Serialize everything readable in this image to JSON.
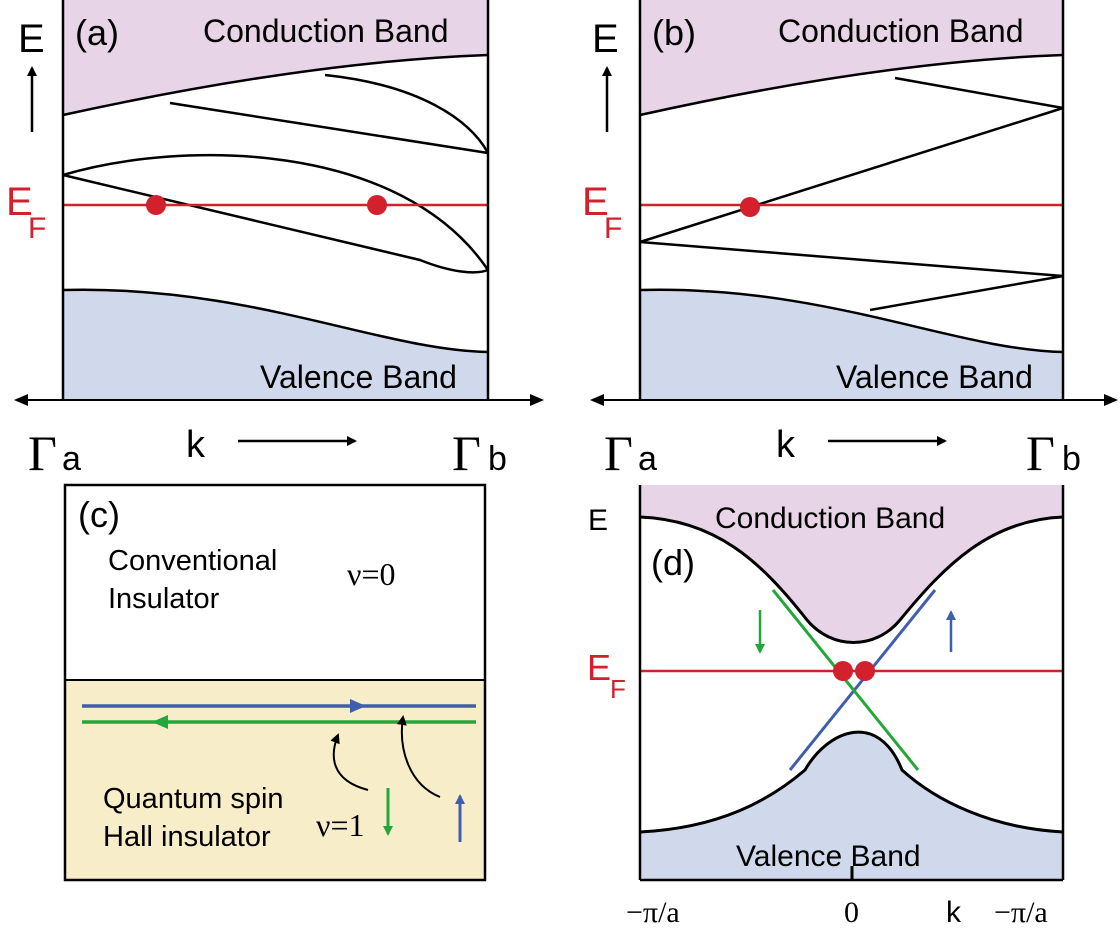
{
  "panel_a": {
    "tag": "(a)",
    "energy_axis": "E",
    "fermi_main": "E",
    "fermi_sub": "F",
    "conduction_band": "Conduction Band",
    "valence_band": "Valence Band",
    "gamma": "Γ",
    "gamma_a_sub": "a",
    "gamma_b_sub": "b",
    "k_label": "k"
  },
  "panel_b": {
    "tag": "(b)",
    "energy_axis": "E",
    "fermi_main": "E",
    "fermi_sub": "F",
    "conduction_band": "Conduction Band",
    "valence_band": "Valence Band",
    "gamma": "Γ",
    "gamma_a_sub": "a",
    "gamma_b_sub": "b",
    "k_label": "k"
  },
  "panel_c": {
    "tag": "(c)",
    "top_line1": "Conventional",
    "top_line2": "Insulator",
    "top_nu": "ν=0",
    "bottom_line1": "Quantum spin",
    "bottom_line2": "Hall insulator",
    "bottom_nu": "ν=1"
  },
  "panel_d": {
    "tag": "(d)",
    "energy_axis": "E",
    "fermi_main": "E",
    "fermi_sub": "F",
    "conduction_band": "Conduction Band",
    "valence_band": "Valence Band",
    "tick_left": "−π/a",
    "tick_zero": "0",
    "tick_k": "k",
    "tick_right": "−π/a"
  },
  "colors": {
    "conduction_fill": "#e7d4e6",
    "valence_fill": "#d0d9ec",
    "qsh_fill": "#f8edc9",
    "fermi_line": "#d3202d",
    "fermi_dot": "#d3202d",
    "edge_blue": "#3f5eae",
    "edge_green": "#22a83a",
    "outline": "#000000"
  }
}
